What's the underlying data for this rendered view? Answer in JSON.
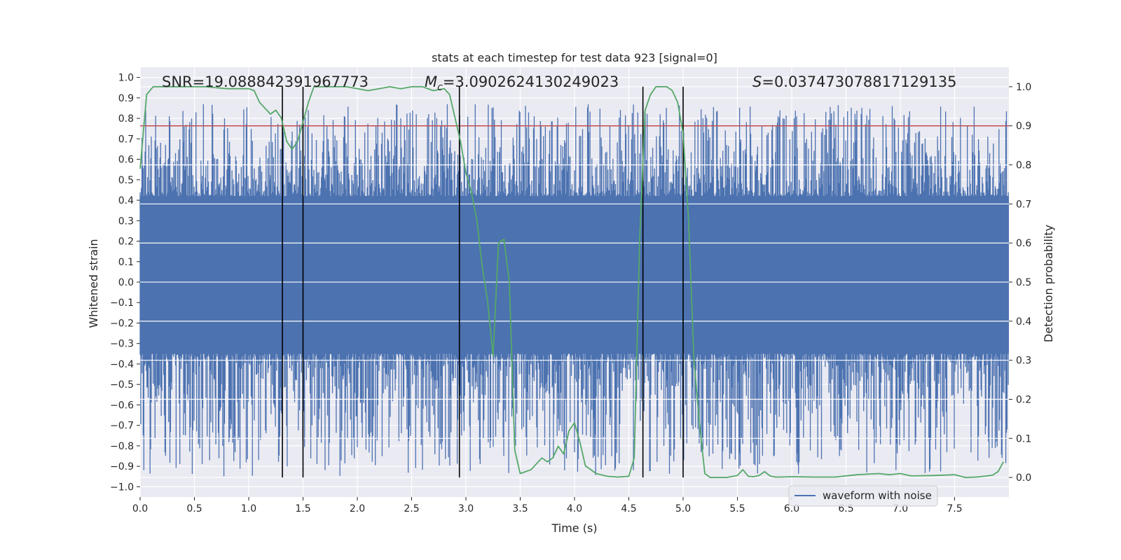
{
  "chart_data": {
    "type": "line",
    "title": "stats at each timestep for test data 923 [signal=0]",
    "xlabel": "Time (s)",
    "ylabel": "Whitened strain",
    "y2label": "Detection probability",
    "xlim": [
      0.0,
      8.0
    ],
    "ylim": [
      -1.05,
      1.05
    ],
    "y2lim": [
      -0.05,
      1.05
    ],
    "xticks": [
      0.0,
      0.5,
      1.0,
      1.5,
      2.0,
      2.5,
      3.0,
      3.5,
      4.0,
      4.5,
      5.0,
      5.5,
      6.0,
      6.5,
      7.0,
      7.5
    ],
    "xtick_labels": [
      "0.0",
      "0.5",
      "1.0",
      "1.5",
      "2.0",
      "2.5",
      "3.0",
      "3.5",
      "4.0",
      "4.5",
      "5.0",
      "5.5",
      "6.0",
      "6.5",
      "7.0",
      "7.5"
    ],
    "yticks": [
      1.0,
      0.9,
      0.8,
      0.7,
      0.6,
      0.5,
      0.4,
      0.3,
      0.2,
      0.1,
      0.0,
      -0.1,
      -0.2,
      -0.3,
      -0.4,
      -0.5,
      -0.6,
      -0.7,
      -0.8,
      -0.9,
      -1.0
    ],
    "ytick_labels": [
      "1.0",
      "0.9",
      "0.8",
      "0.7",
      "0.6",
      "0.5",
      "0.4",
      "0.3",
      "0.2",
      "0.1",
      "0.0",
      "−0.1",
      "−0.2",
      "−0.3",
      "−0.4",
      "−0.5",
      "−0.6",
      "−0.7",
      "−0.8",
      "−0.9",
      "−1.0"
    ],
    "y2ticks": [
      1.0,
      0.9,
      0.8,
      0.7,
      0.6,
      0.5,
      0.4,
      0.3,
      0.2,
      0.1,
      0.0
    ],
    "y2tick_labels": [
      "1.0",
      "0.9",
      "0.8",
      "0.7",
      "0.6",
      "0.5",
      "0.4",
      "0.3",
      "0.2",
      "0.1",
      "0.0"
    ],
    "annotations": {
      "snr": "SNR=19.088842391967773",
      "mc_symbol": "M",
      "mc_sub": "c",
      "mc_value": "=3.0902624130249023",
      "s_symbol": "S",
      "s_value": "=0.037473078817129135"
    },
    "legend": {
      "label": "waveform with noise",
      "placement": "lower-right"
    },
    "threshold": {
      "y2": 0.9
    },
    "event_markers": [
      1.31,
      1.5,
      2.94,
      4.63,
      5.0
    ],
    "waveform": {
      "name": "waveform with noise",
      "sample_count": 1400,
      "dense_band": [
        -0.35,
        0.42
      ],
      "peak_range": [
        -0.95,
        0.87
      ]
    },
    "series": [
      {
        "name": "detection probability",
        "axis": "y2",
        "x": [
          0.0,
          0.06,
          0.12,
          0.2,
          0.4,
          0.6,
          0.8,
          0.9,
          1.0,
          1.05,
          1.1,
          1.2,
          1.25,
          1.3,
          1.35,
          1.4,
          1.45,
          1.5,
          1.55,
          1.6,
          1.65,
          1.75,
          1.9,
          2.1,
          2.2,
          2.3,
          2.4,
          2.5,
          2.6,
          2.7,
          2.8,
          2.85,
          2.9,
          2.95,
          3.0,
          3.05,
          3.1,
          3.15,
          3.2,
          3.25,
          3.3,
          3.35,
          3.4,
          3.45,
          3.5,
          3.6,
          3.7,
          3.75,
          3.8,
          3.85,
          3.9,
          3.95,
          4.0,
          4.05,
          4.1,
          4.2,
          4.3,
          4.4,
          4.5,
          4.55,
          4.6,
          4.65,
          4.7,
          4.75,
          4.8,
          4.85,
          4.9,
          4.95,
          5.0,
          5.05,
          5.1,
          5.15,
          5.2,
          5.25,
          5.3,
          5.4,
          5.5,
          5.55,
          5.6,
          5.65,
          5.7,
          5.75,
          5.8,
          5.85,
          5.9,
          6.0,
          6.2,
          6.4,
          6.6,
          6.8,
          6.9,
          7.0,
          7.1,
          7.3,
          7.5,
          7.6,
          7.7,
          7.8,
          7.85,
          7.9,
          7.95
        ],
        "values": [
          0.79,
          0.98,
          1.0,
          1.0,
          1.0,
          1.0,
          0.995,
          0.995,
          0.995,
          0.99,
          0.96,
          0.93,
          0.94,
          0.92,
          0.86,
          0.84,
          0.86,
          0.91,
          0.96,
          1.0,
          1.0,
          1.0,
          1.0,
          0.99,
          0.995,
          1.0,
          0.995,
          1.0,
          1.0,
          0.99,
          0.995,
          0.98,
          0.92,
          0.86,
          0.78,
          0.73,
          0.66,
          0.54,
          0.45,
          0.31,
          0.6,
          0.61,
          0.5,
          0.07,
          0.01,
          0.02,
          0.05,
          0.04,
          0.05,
          0.08,
          0.06,
          0.12,
          0.14,
          0.09,
          0.03,
          0.01,
          0.003,
          0.001,
          0.003,
          0.05,
          0.61,
          0.94,
          0.98,
          1.0,
          1.0,
          1.0,
          0.99,
          0.96,
          0.88,
          0.66,
          0.3,
          0.14,
          0.01,
          0.0,
          0.0,
          0.0,
          0.005,
          0.02,
          0.003,
          0.002,
          0.005,
          0.015,
          0.004,
          0.001,
          0.001,
          0.002,
          0.001,
          0.001,
          0.007,
          0.01,
          0.007,
          0.01,
          0.004,
          0.005,
          0.007,
          0.0,
          0.001,
          0.004,
          0.006,
          0.015,
          0.04
        ]
      }
    ],
    "colors": {
      "background": "#eaeaf2",
      "grid": "#ffffff",
      "waveform": "#4c72b0",
      "probability": "#55a868",
      "threshold": "#c44e52",
      "marker": "#000000"
    }
  }
}
